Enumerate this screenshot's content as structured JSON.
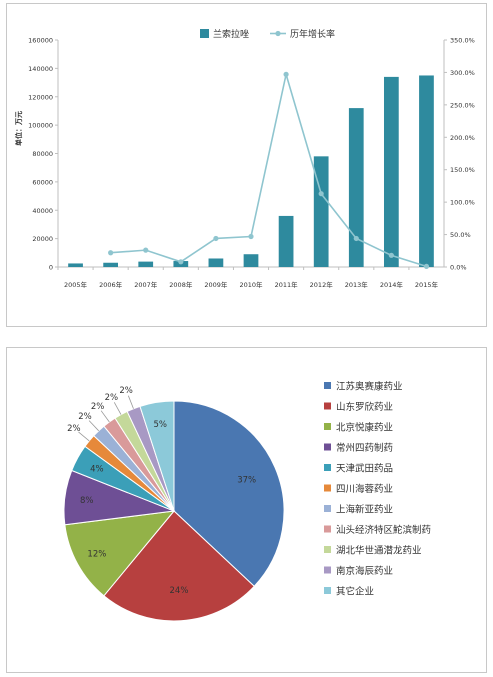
{
  "chart_data": [
    {
      "type": "bar",
      "categories": [
        "2005年",
        "2006年",
        "2007年",
        "2008年",
        "2009年",
        "2010年",
        "2011年",
        "2012年",
        "2013年",
        "2014年",
        "2015年"
      ],
      "ylabel": "单位：万元",
      "ylim": [
        0,
        160000
      ],
      "yticks": [
        "0",
        "20000",
        "40000",
        "60000",
        "80000",
        "100000",
        "120000",
        "140000",
        "160000"
      ],
      "y2lim": [
        0,
        350
      ],
      "y2ticks": [
        "0.0%",
        "50.0%",
        "100.0%",
        "150.0%",
        "200.0%",
        "250.0%",
        "300.0%",
        "350.0%"
      ],
      "legend_position": "top",
      "series": [
        {
          "name": "兰索拉唑",
          "type": "bar",
          "color": "#2e8a9e",
          "values": [
            2500,
            3000,
            3800,
            4200,
            6000,
            9000,
            36000,
            78000,
            112000,
            134000,
            135000
          ]
        },
        {
          "name": "历年增长率",
          "type": "line",
          "axis": "right",
          "color": "#8fc5cf",
          "values": [
            null,
            22,
            26,
            8,
            44,
            47,
            297,
            113,
            44,
            18,
            1
          ]
        }
      ]
    },
    {
      "type": "pie",
      "legend_position": "right",
      "slices": [
        {
          "label": "江苏奥赛康药业",
          "value": 37,
          "display": "37%",
          "color": "#4a77b1"
        },
        {
          "label": "山东罗欣药业",
          "value": 24,
          "display": "24%",
          "color": "#b7403f"
        },
        {
          "label": "北京悦康药业",
          "value": 12,
          "display": "12%",
          "color": "#93b248"
        },
        {
          "label": "常州四药制药",
          "value": 8,
          "display": "8%",
          "color": "#6e4f95"
        },
        {
          "label": "天津武田药品",
          "value": 4,
          "display": "4%",
          "color": "#3b9fb8"
        },
        {
          "label": "四川海蓉药业",
          "value": 2,
          "display": "2%",
          "color": "#e6893a"
        },
        {
          "label": "上海新亚药业",
          "value": 2,
          "display": "2%",
          "color": "#9bb1d6"
        },
        {
          "label": "汕头经济特区鮀滨制药",
          "value": 2,
          "display": "2%",
          "color": "#d99a9a"
        },
        {
          "label": "湖北华世通潜龙药业",
          "value": 2,
          "display": "2%",
          "color": "#c4d89a"
        },
        {
          "label": "南京海辰药业",
          "value": 2,
          "display": "2%",
          "color": "#a899c4"
        },
        {
          "label": "其它企业",
          "value": 5,
          "display": "5%",
          "color": "#8cc9d9"
        }
      ]
    }
  ],
  "colors": {
    "axis": "#bfbfbf",
    "text": "#333333"
  }
}
